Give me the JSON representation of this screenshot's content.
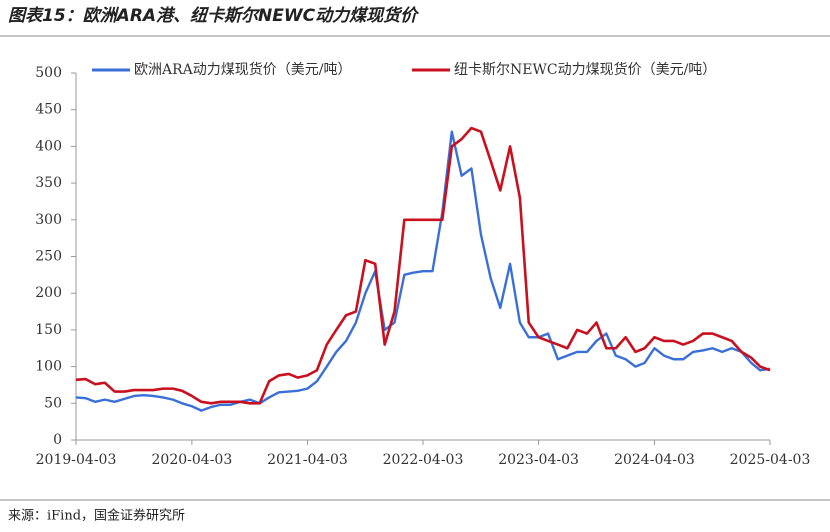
{
  "chart_data": {
    "type": "line",
    "title": "图表15：欧洲ARA港、纽卡斯尔NEWC动力煤现货价",
    "source": "来源：iFind，国金证券研究所",
    "x": [
      "2019-04-03",
      "2019-05-03",
      "2019-06-03",
      "2019-07-03",
      "2019-08-03",
      "2019-09-03",
      "2019-10-03",
      "2019-11-03",
      "2019-12-03",
      "2020-01-03",
      "2020-02-03",
      "2020-03-03",
      "2020-04-03",
      "2020-05-03",
      "2020-06-03",
      "2020-07-03",
      "2020-08-03",
      "2020-09-03",
      "2020-10-03",
      "2020-11-03",
      "2020-12-03",
      "2021-01-03",
      "2021-02-03",
      "2021-03-03",
      "2021-04-03",
      "2021-05-03",
      "2021-06-03",
      "2021-07-03",
      "2021-08-03",
      "2021-09-03",
      "2021-10-03",
      "2021-11-03",
      "2021-12-03",
      "2022-01-03",
      "2022-02-03",
      "2022-03-03",
      "2022-04-03",
      "2022-05-03",
      "2022-06-03",
      "2022-07-03",
      "2022-08-03",
      "2022-09-03",
      "2022-10-03",
      "2022-11-03",
      "2022-12-03",
      "2023-01-03",
      "2023-02-03",
      "2023-03-03",
      "2023-04-03",
      "2023-05-03",
      "2023-06-03",
      "2023-07-03",
      "2023-08-03",
      "2023-09-03",
      "2023-10-03",
      "2023-11-03",
      "2023-12-03",
      "2024-01-03",
      "2024-02-03",
      "2024-03-03",
      "2024-04-03",
      "2024-05-03",
      "2024-06-03",
      "2024-07-03",
      "2024-08-03",
      "2024-09-03",
      "2024-10-03",
      "2024-11-03",
      "2024-12-03",
      "2025-01-03",
      "2025-02-03",
      "2025-03-03",
      "2025-04-03"
    ],
    "series": [
      {
        "name": "欧洲ARA动力煤现货价（美元/吨）",
        "color": "#3a6fd8",
        "values": [
          58,
          57,
          52,
          55,
          52,
          56,
          60,
          61,
          60,
          58,
          55,
          50,
          46,
          40,
          45,
          48,
          48,
          52,
          55,
          50,
          58,
          65,
          66,
          67,
          70,
          80,
          100,
          120,
          135,
          160,
          200,
          230,
          150,
          160,
          225,
          228,
          230,
          230,
          310,
          420,
          360,
          370,
          280,
          220,
          180,
          240,
          160,
          140,
          140,
          145,
          110,
          115,
          120,
          120,
          135,
          145,
          115,
          110,
          100,
          105,
          125,
          115,
          110,
          110,
          120,
          122,
          125,
          120,
          125,
          120,
          105,
          95,
          97
        ]
      },
      {
        "name": "纽卡斯尔NEWC动力煤现货价（美元/吨）",
        "color": "#c8101e",
        "values": [
          82,
          83,
          76,
          78,
          66,
          66,
          68,
          68,
          68,
          70,
          70,
          67,
          60,
          52,
          50,
          52,
          52,
          52,
          50,
          50,
          80,
          88,
          90,
          85,
          88,
          95,
          130,
          150,
          170,
          175,
          245,
          240,
          130,
          175,
          300,
          300,
          300,
          300,
          300,
          400,
          410,
          425,
          420,
          380,
          340,
          400,
          330,
          160,
          140,
          135,
          130,
          125,
          150,
          145,
          160,
          125,
          125,
          140,
          120,
          125,
          140,
          135,
          135,
          130,
          135,
          145,
          145,
          140,
          135,
          120,
          112,
          100,
          95
        ]
      }
    ],
    "xlim": [
      "2019-04-03",
      "2025-04-03"
    ],
    "xticks": [
      "2019-04-03",
      "2020-04-03",
      "2021-04-03",
      "2022-04-03",
      "2023-04-03",
      "2024-04-03",
      "2025-04-03"
    ],
    "ylim": [
      0,
      500
    ],
    "yticks": [
      0,
      50,
      100,
      150,
      200,
      250,
      300,
      350,
      400,
      450,
      500
    ]
  }
}
